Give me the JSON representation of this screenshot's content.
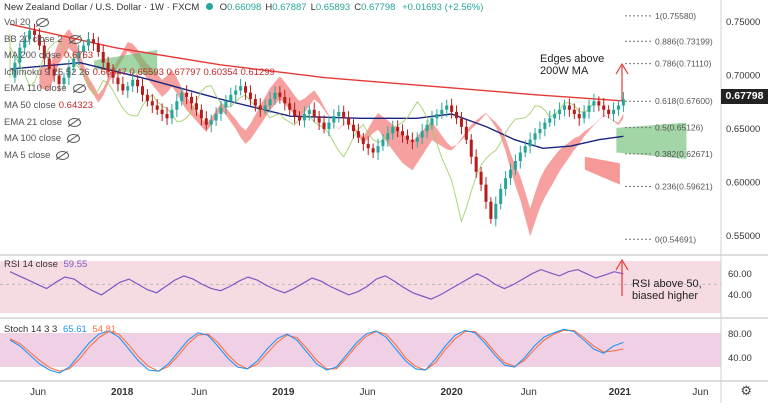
{
  "header": {
    "title": "New Zealand Dollar / U.S. Dollar · 1W · FXCM",
    "ohlc": [
      {
        "k": "O",
        "v": "0.66098"
      },
      {
        "k": "H",
        "v": "0.67887"
      },
      {
        "k": "L",
        "v": "0.65893"
      },
      {
        "k": "C",
        "v": "0.67798"
      }
    ],
    "change": "+0.01693 (+2.56%)"
  },
  "indicators": [
    {
      "label": "Vol 20",
      "value": ""
    },
    {
      "label": "BB 20 close 2",
      "value": ""
    },
    {
      "label": "MA 200 close",
      "value": "0.6763"
    },
    {
      "label": "Ichimoku 9 26 52 26",
      "value": "0.66547  0.65593  0.67797  0.60354  0.61299"
    },
    {
      "label": "EMA 110 close",
      "value": ""
    },
    {
      "label": "MA 50 close",
      "value": "0.64323"
    },
    {
      "label": "EMA 21 close",
      "value": ""
    },
    {
      "label": "MA 100 close",
      "value": ""
    },
    {
      "label": "MA 5 close",
      "value": ""
    }
  ],
  "price_tag": "0.67798",
  "rsi": {
    "label": "RSI 14 close",
    "value": "59.55",
    "ticks": [
      "60.00",
      "40.00"
    ]
  },
  "stoch": {
    "label": "Stoch 14 3 3",
    "k": "65.61",
    "d": "54.81",
    "ticks": [
      "80.00",
      "40.00"
    ]
  },
  "colors": {
    "candle_up": "#26a69a",
    "candle_down": "#b71c1c",
    "ma200": "#e53935",
    "ma50": "#1a237e",
    "cloud_bear": "#ef5350",
    "cloud_bull": "#66bb6a",
    "stoch_k": "#2196f3",
    "stoch_d": "#ff7043",
    "rsi": "#7e57c2",
    "band": "#f3d6e0"
  },
  "chart_data": {
    "type": "candlestick",
    "title": "New Zealand Dollar / U.S. Dollar",
    "timeframe": "1W",
    "source": "FXCM",
    "yticks": [
      0.55,
      0.6,
      0.65,
      0.7,
      0.75
    ],
    "ylim": [
      0.535,
      0.765
    ],
    "xticks": [
      "Jun",
      "2018",
      "Jun",
      "2019",
      "Jun",
      "2020",
      "Jun",
      "2021",
      "Jun"
    ],
    "fibonacci": [
      {
        "label": "1(0.75580)",
        "value": 0.7558
      },
      {
        "label": "0.886(0.73199)",
        "value": 0.73199
      },
      {
        "label": "0.786(0.71110)",
        "value": 0.7111
      },
      {
        "label": "0.618(0.67600)",
        "value": 0.676
      },
      {
        "label": "0.5(0.65126)",
        "value": 0.65126
      },
      {
        "label": "0.382(0.62671)",
        "value": 0.62671
      },
      {
        "label": "0.236(0.59621)",
        "value": 0.59621
      },
      {
        "label": "0(0.54691)",
        "value": 0.54691
      }
    ],
    "price_path": [
      0.698,
      0.712,
      0.726,
      0.734,
      0.742,
      0.738,
      0.728,
      0.716,
      0.706,
      0.7,
      0.692,
      0.698,
      0.708,
      0.716,
      0.722,
      0.728,
      0.734,
      0.73,
      0.722,
      0.712,
      0.704,
      0.698,
      0.692,
      0.686,
      0.69,
      0.696,
      0.69,
      0.682,
      0.676,
      0.672,
      0.668,
      0.664,
      0.66,
      0.668,
      0.676,
      0.684,
      0.68,
      0.674,
      0.668,
      0.66,
      0.654,
      0.658,
      0.664,
      0.67,
      0.676,
      0.682,
      0.686,
      0.69,
      0.684,
      0.678,
      0.672,
      0.668,
      0.672,
      0.678,
      0.684,
      0.68,
      0.674,
      0.668,
      0.662,
      0.658,
      0.664,
      0.668,
      0.662,
      0.656,
      0.65,
      0.656,
      0.662,
      0.666,
      0.66,
      0.654,
      0.648,
      0.642,
      0.636,
      0.632,
      0.628,
      0.634,
      0.64,
      0.646,
      0.652,
      0.648,
      0.644,
      0.64,
      0.638,
      0.642,
      0.648,
      0.654,
      0.66,
      0.664,
      0.668,
      0.672,
      0.666,
      0.66,
      0.652,
      0.64,
      0.624,
      0.61,
      0.598,
      0.582,
      0.566,
      0.58,
      0.594,
      0.604,
      0.612,
      0.62,
      0.628,
      0.634,
      0.64,
      0.646,
      0.65,
      0.656,
      0.66,
      0.664,
      0.668,
      0.672,
      0.668,
      0.664,
      0.66,
      0.666,
      0.672,
      0.676,
      0.672,
      0.668,
      0.664,
      0.668,
      0.672,
      0.678
    ],
    "x_norm_end": 0.875,
    "ma200": [
      [
        0,
        0.748
      ],
      [
        0.15,
        0.726
      ],
      [
        0.3,
        0.71
      ],
      [
        0.45,
        0.698
      ],
      [
        0.6,
        0.69
      ],
      [
        0.75,
        0.682
      ],
      [
        0.875,
        0.6763
      ]
    ],
    "ma50": [
      [
        0,
        0.706
      ],
      [
        0.1,
        0.712
      ],
      [
        0.2,
        0.696
      ],
      [
        0.3,
        0.678
      ],
      [
        0.4,
        0.662
      ],
      [
        0.5,
        0.66
      ],
      [
        0.58,
        0.66
      ],
      [
        0.63,
        0.664
      ],
      [
        0.68,
        0.652
      ],
      [
        0.72,
        0.64
      ],
      [
        0.76,
        0.632
      ],
      [
        0.8,
        0.634
      ],
      [
        0.84,
        0.64
      ],
      [
        0.875,
        0.6432
      ]
    ],
    "annotations": [
      {
        "text": "Edges above 200W MA",
        "near": "top-right"
      },
      {
        "text": "RSI above 50, biased higher",
        "near": "rsi-right"
      }
    ],
    "rsi_path": [
      62,
      58,
      54,
      50,
      46,
      52,
      57,
      55,
      49,
      44,
      40,
      46,
      52,
      55,
      50,
      45,
      42,
      48,
      54,
      58,
      55,
      50,
      46,
      44,
      48,
      53,
      57,
      54,
      49,
      45,
      42,
      46,
      51,
      56,
      53,
      48,
      44,
      40,
      43,
      48,
      55,
      58,
      53,
      47,
      42,
      39,
      36,
      40,
      45,
      50,
      55,
      60,
      56,
      50,
      46,
      50,
      55,
      60,
      64,
      61,
      58,
      62,
      64,
      60,
      56,
      59,
      62,
      60
    ],
    "rsi_ylim": [
      20,
      75
    ],
    "stoch_k_path": [
      70,
      60,
      45,
      30,
      20,
      15,
      25,
      45,
      65,
      80,
      85,
      75,
      55,
      35,
      20,
      18,
      30,
      50,
      70,
      82,
      78,
      60,
      40,
      25,
      22,
      35,
      55,
      72,
      80,
      70,
      50,
      30,
      20,
      25,
      45,
      65,
      80,
      85,
      75,
      55,
      35,
      22,
      20,
      38,
      60,
      78,
      86,
      82,
      65,
      45,
      28,
      25,
      40,
      60,
      75,
      82,
      88,
      84,
      70,
      55,
      48,
      60,
      66
    ],
    "stoch_d_path": [
      72,
      64,
      50,
      36,
      24,
      18,
      22,
      38,
      58,
      74,
      84,
      80,
      62,
      42,
      26,
      18,
      26,
      44,
      64,
      78,
      80,
      66,
      46,
      30,
      22,
      30,
      48,
      66,
      78,
      74,
      56,
      36,
      22,
      22,
      40,
      60,
      76,
      84,
      80,
      62,
      40,
      26,
      20,
      32,
      54,
      72,
      84,
      84,
      70,
      50,
      32,
      26,
      36,
      54,
      70,
      80,
      86,
      86,
      74,
      60,
      50,
      52,
      55
    ],
    "stoch_ylim": [
      5,
      100
    ]
  }
}
